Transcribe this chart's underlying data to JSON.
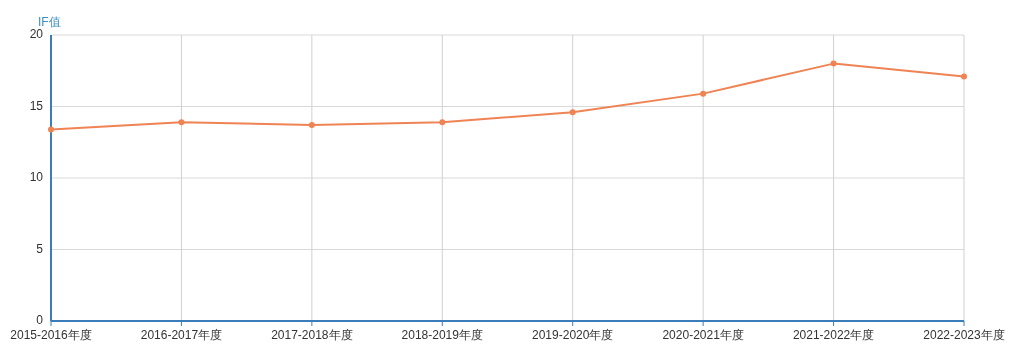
{
  "chart_data": {
    "type": "line",
    "ylabel": "IF值",
    "categories": [
      "2015-2016年度",
      "2016-2017年度",
      "2017-2018年度",
      "2018-2019年度",
      "2019-2020年度",
      "2020-2021年度",
      "2021-2022年度",
      "2022-2023年度"
    ],
    "series": [
      {
        "color": "#ef8354",
        "values": [
          13.4,
          13.9,
          13.7,
          13.9,
          14.6,
          15.9,
          18.0,
          17.1
        ]
      }
    ],
    "ylim": [
      0,
      20
    ],
    "yticks": [
      0,
      5,
      10,
      15,
      20
    ],
    "grid": true,
    "marker": "circle",
    "line_style": "solid"
  }
}
